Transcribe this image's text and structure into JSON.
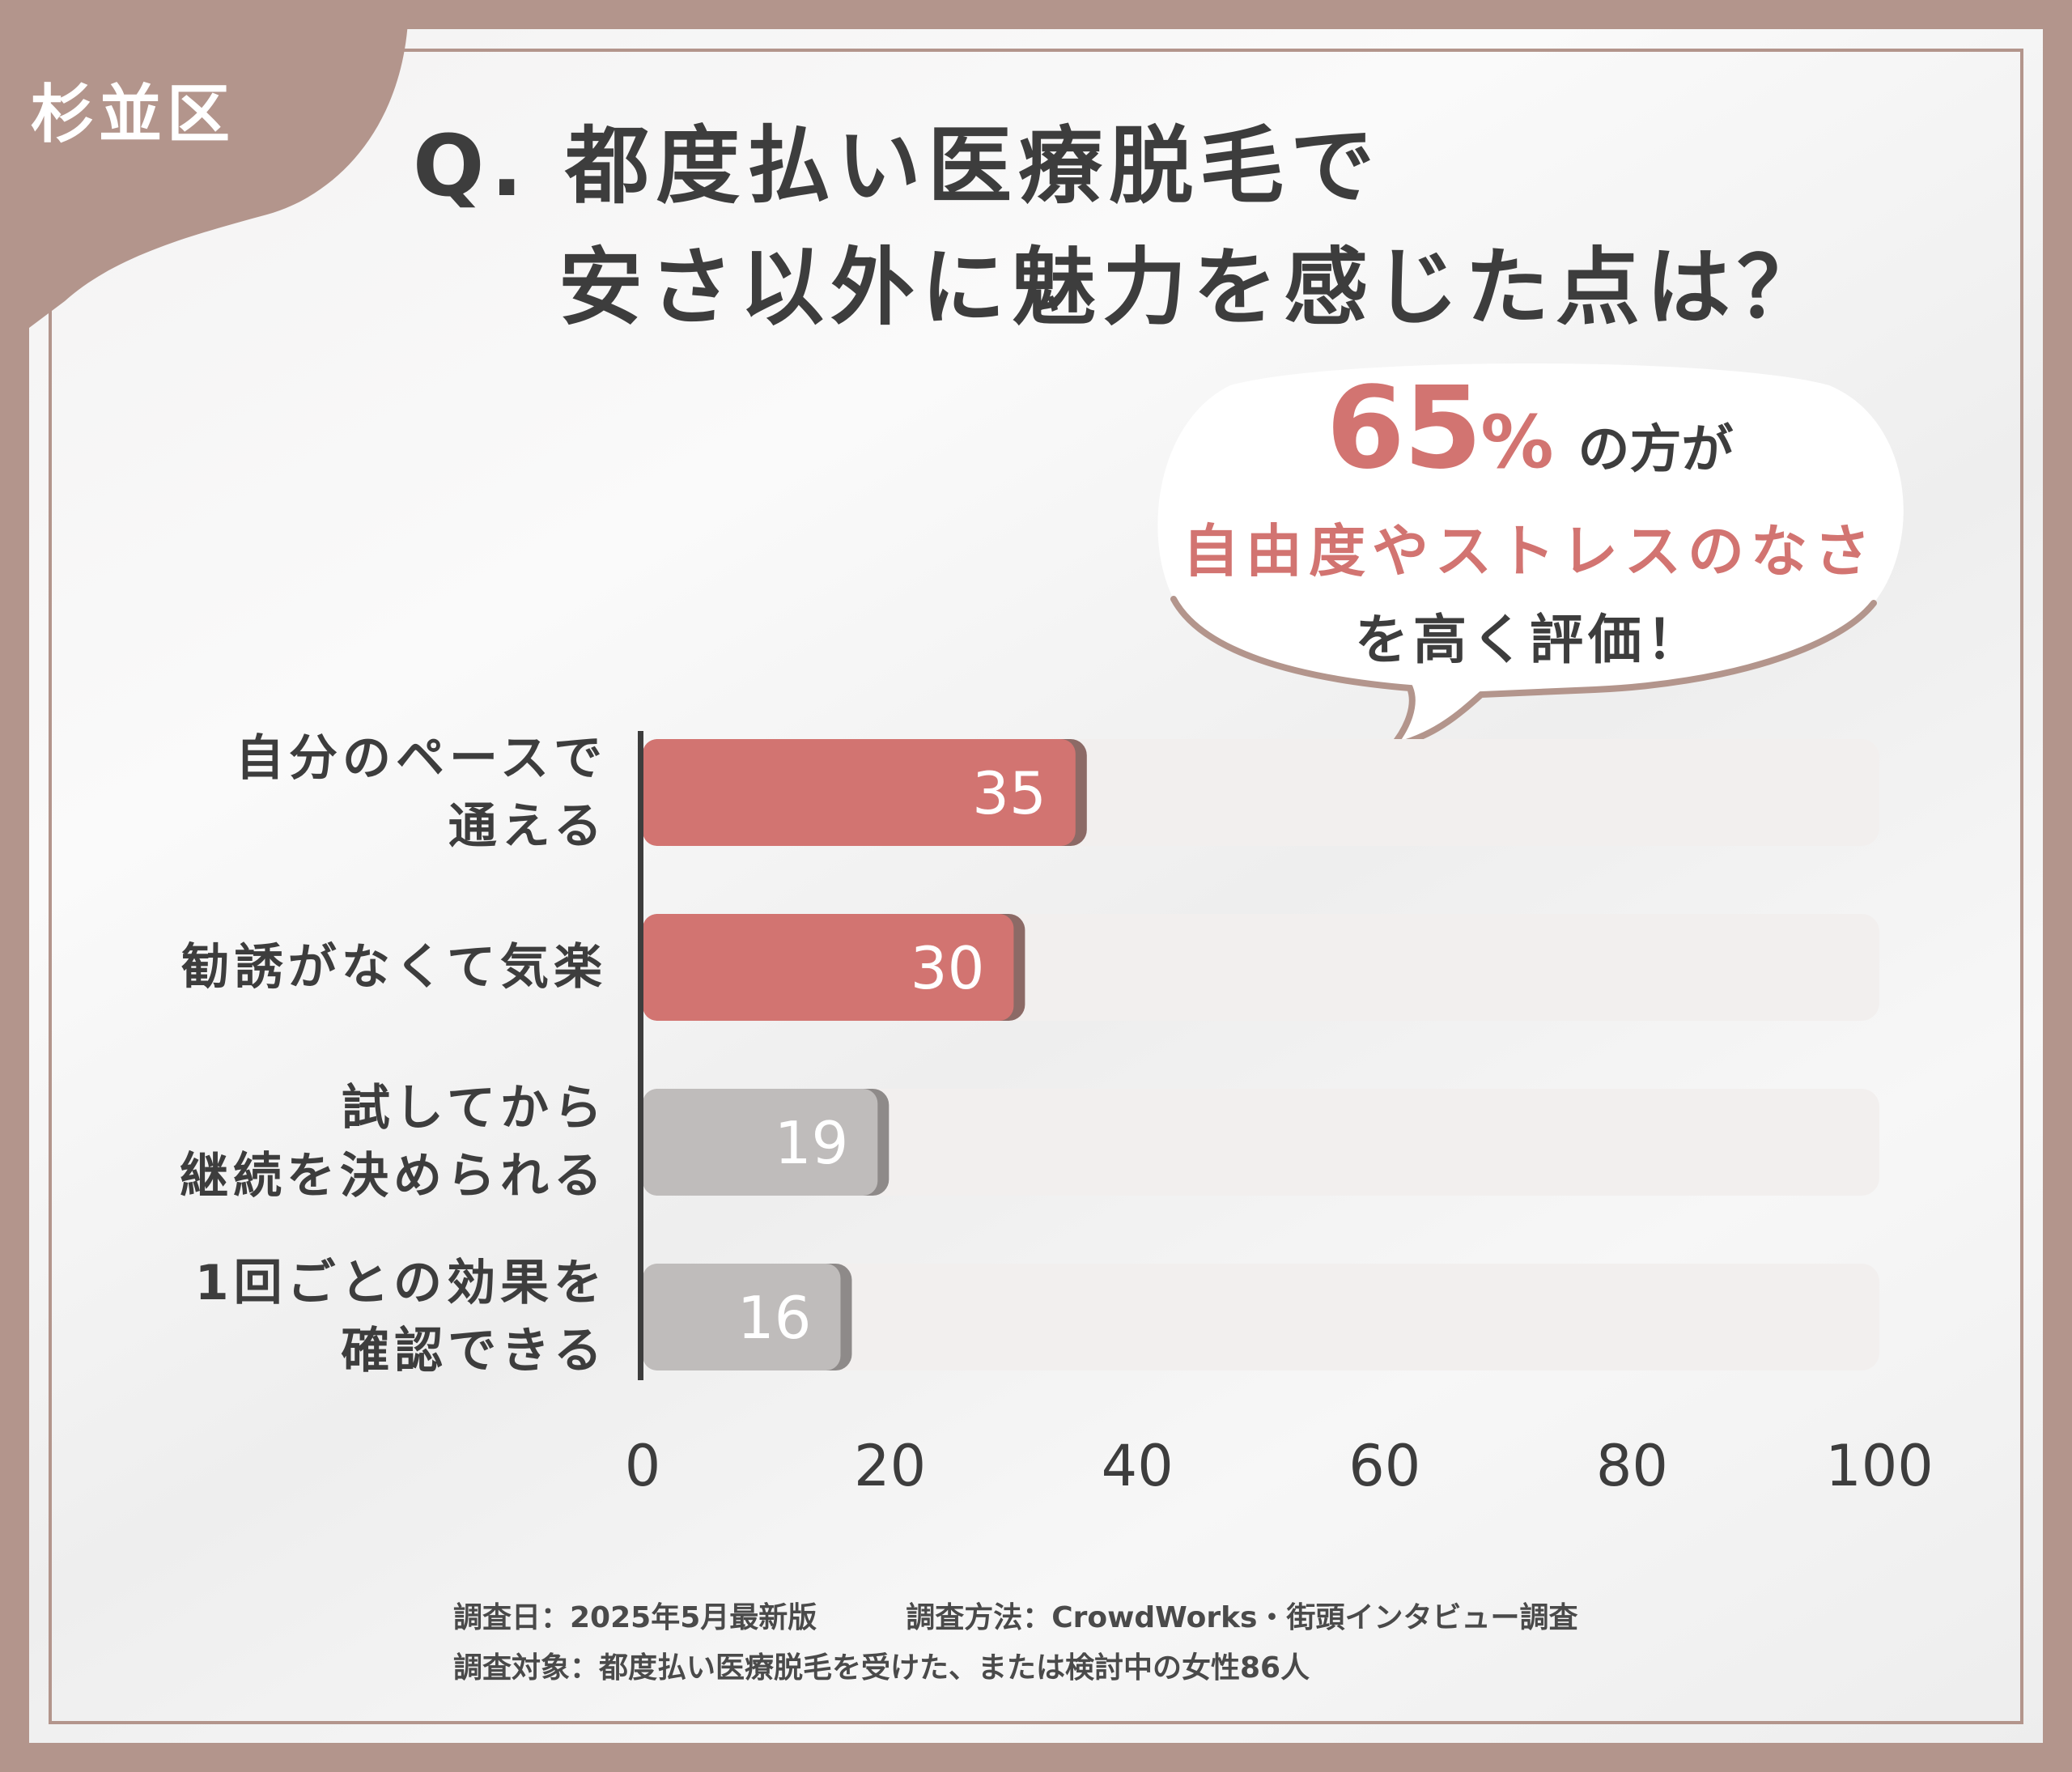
{
  "region_tag": "杉並区",
  "question": {
    "line1": "Q. 都度払い医療脱毛で",
    "line2": "安さ以外に魅力を感じた点は？"
  },
  "callout": {
    "percent": "65",
    "percent_sign": "%",
    "suffix": "の方が",
    "highlight": "自由度やストレスのなさ",
    "line3": "を高く評価！"
  },
  "colors": {
    "background": "#b3958c",
    "accent": "#d27471",
    "bar_highlight": "#d27471",
    "bar_muted": "#bfbcbb",
    "track": "#f2efee",
    "text": "#3d3d3d"
  },
  "chart_data": {
    "type": "bar",
    "orientation": "horizontal",
    "categories": [
      "自分のペースで\n通える",
      "勧誘がなくて気楽",
      "試してから\n継続を決められる",
      "1回ごとの効果を\n確認できる"
    ],
    "values": [
      35,
      30,
      19,
      16
    ],
    "highlighted": [
      true,
      true,
      false,
      false
    ],
    "xlim": [
      0,
      100
    ],
    "xticks": [
      "0",
      "20",
      "40",
      "60",
      "80",
      "100"
    ],
    "grid": false,
    "legend": "none"
  },
  "footer": {
    "date": "調査日：2025年5月最新版",
    "method": "調査方法：CrowdWorks・街頭インタビュー調査",
    "target": "調査対象：都度払い医療脱毛を受けた、または検討中の女性86人"
  }
}
